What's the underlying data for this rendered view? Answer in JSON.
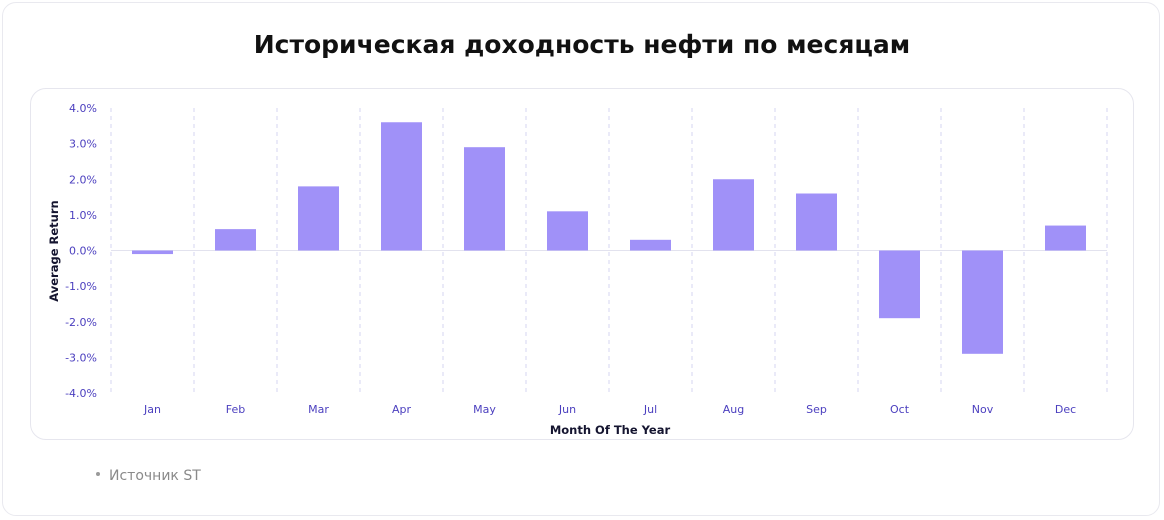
{
  "title": "Историческая доходность нефти по месяцам",
  "source_text": "Источник ST",
  "colors": {
    "bar": "#a091f8",
    "tick": "#4b3fbf",
    "grid": "#d6d6f2"
  },
  "chart_data": {
    "type": "bar",
    "title": "Историческая доходность нефти по месяцам",
    "xlabel": "Month Of The Year",
    "ylabel": "Average Return",
    "categories": [
      "Jan",
      "Feb",
      "Mar",
      "Apr",
      "May",
      "Jun",
      "Jul",
      "Aug",
      "Sep",
      "Oct",
      "Nov",
      "Dec"
    ],
    "values": [
      -0.1,
      0.6,
      1.8,
      3.6,
      2.9,
      1.1,
      0.3,
      2.0,
      1.6,
      -1.9,
      -2.9,
      0.7
    ],
    "ylim": [
      -4,
      4
    ],
    "yticks": [
      "4.0%",
      "3.0%",
      "2.0%",
      "1.0%",
      "0.0%",
      "-1.0%",
      "-2.0%",
      "-3.0%",
      "-4.0%"
    ],
    "grid": "vertical dashed",
    "legend": "none"
  }
}
